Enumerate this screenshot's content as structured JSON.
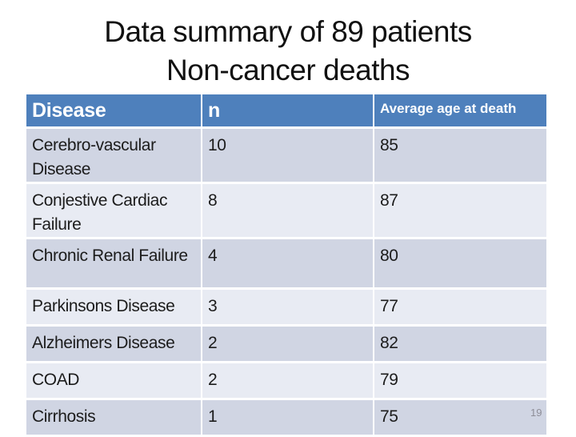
{
  "slide": {
    "title_line1": "Data summary of 89 patients",
    "title_line2": "Non-cancer deaths",
    "page_number": "19"
  },
  "table": {
    "columns": [
      "Disease",
      "n",
      "Average age at death"
    ],
    "rows": [
      {
        "disease": "Cerebro-vascular Disease",
        "n": "10",
        "avg_age": "85"
      },
      {
        "disease": "Conjestive Cardiac Failure",
        "n": "8",
        "avg_age": "87"
      },
      {
        "disease": "Chronic Renal Failure",
        "n": "4",
        "avg_age": "80"
      },
      {
        "disease": "Parkinsons Disease",
        "n": "3",
        "avg_age": "77"
      },
      {
        "disease": "Alzheimers Disease",
        "n": "2",
        "avg_age": "82"
      },
      {
        "disease": "COAD",
        "n": "2",
        "avg_age": "79"
      },
      {
        "disease": "Cirrhosis",
        "n": "1",
        "avg_age": "75"
      }
    ]
  },
  "colors": {
    "header_bg": "#4e80bc",
    "header_text": "#ffffff",
    "row_band_dark": "#d0d5e3",
    "row_band_light": "#e8ebf3",
    "body_text": "#1c1c1c",
    "page_number": "#8e8e98"
  }
}
